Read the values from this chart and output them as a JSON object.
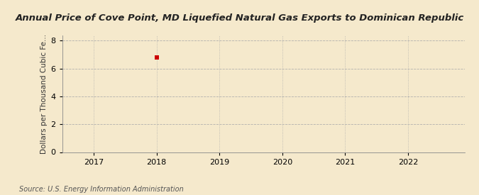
{
  "title": "Annual Price of Cove Point, MD Liquefied Natural Gas Exports to Dominican Republic",
  "ylabel": "Dollars per Thousand Cubic Fe...",
  "source": "Source: U.S. Energy Information Administration",
  "data_x": [
    2018
  ],
  "data_y": [
    6.8
  ],
  "marker_color": "#cc0000",
  "marker_size": 4,
  "xlim": [
    2016.5,
    2022.9
  ],
  "ylim": [
    0,
    8.4
  ],
  "yticks": [
    0,
    2,
    4,
    6,
    8
  ],
  "xticks": [
    2017,
    2018,
    2019,
    2020,
    2021,
    2022
  ],
  "background_color": "#f5e9cc",
  "plot_bg_color": "#f5e9cc",
  "grid_color": "#aaaaaa",
  "title_fontsize": 9.5,
  "label_fontsize": 7.5,
  "tick_fontsize": 8,
  "source_fontsize": 7
}
